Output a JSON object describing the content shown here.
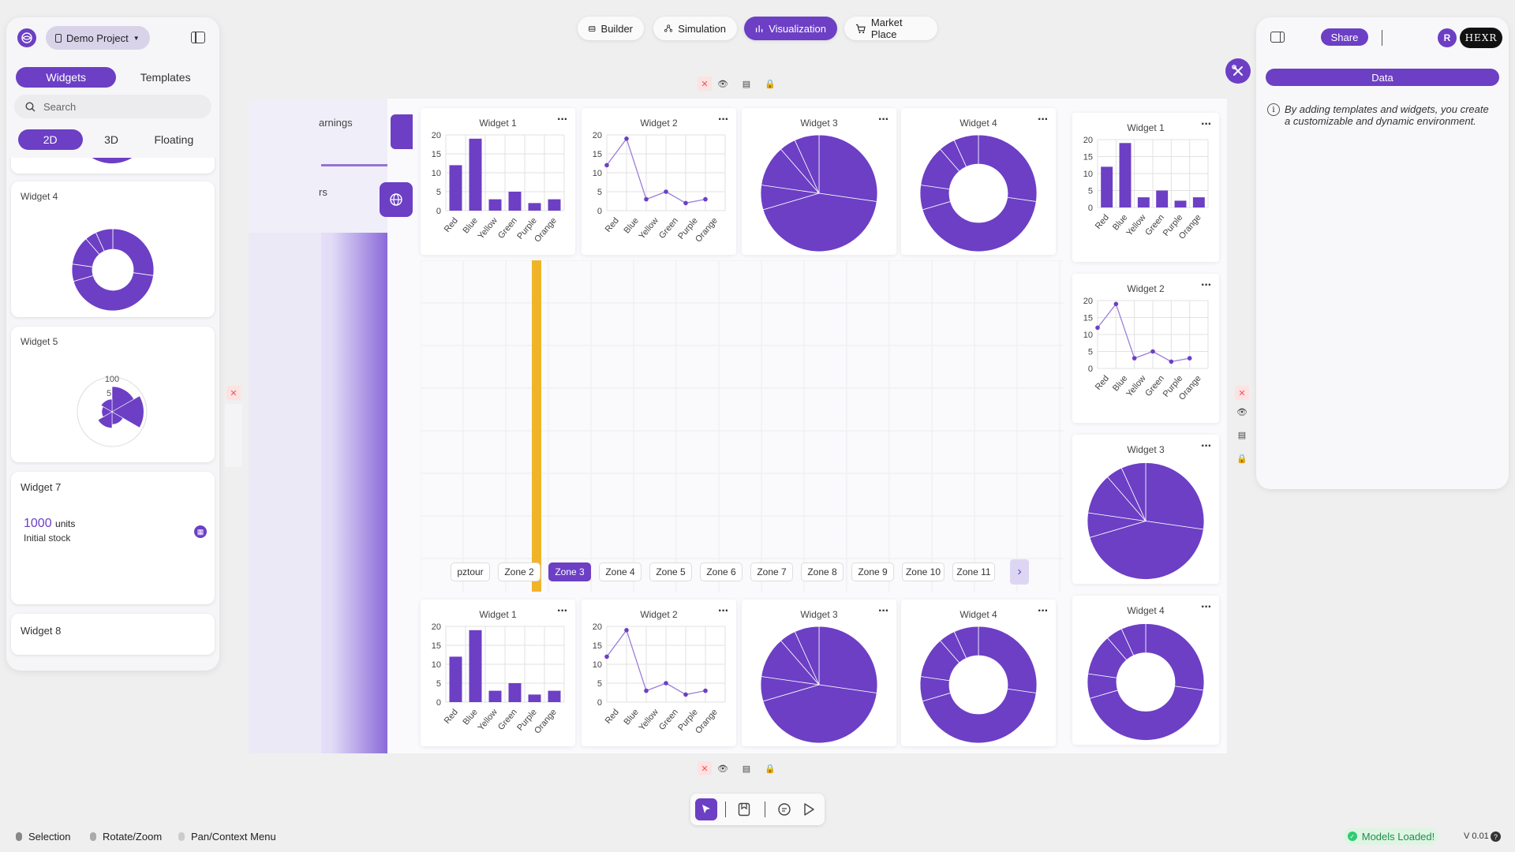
{
  "project": {
    "name": "Demo Project"
  },
  "left": {
    "tabs": [
      "Widgets",
      "Templates"
    ],
    "search_placeholder": "Search",
    "modes": [
      "2D",
      "3D",
      "Floating"
    ],
    "widget4": "Widget 4",
    "widget5": "Widget 5",
    "widget5_max": "100",
    "widget5_mid": "5",
    "widget7": {
      "title": "Widget 7",
      "value": "1000",
      "unit": "units",
      "caption": "Initial stock"
    },
    "widget8": "Widget 8"
  },
  "nav": {
    "builder": "Builder",
    "simulation": "Simulation",
    "visualization": "Visualization",
    "market": "Market Place"
  },
  "right": {
    "share": "Share",
    "avatar": "R",
    "logo": "HEXR",
    "data_tab": "Data",
    "info": "By adding templates and widgets, you create a customizable and dynamic environment."
  },
  "bg": {
    "earnings": "arnings",
    "rs": "rs"
  },
  "widgets": {
    "w1": "Widget 1",
    "w2": "Widget 2",
    "w3": "Widget 3",
    "w4": "Widget 4"
  },
  "zones": [
    "pztour",
    "Zone 2",
    "Zone 3",
    "Zone 4",
    "Zone 5",
    "Zone 6",
    "Zone 7",
    "Zone 8",
    "Zone 9",
    "Zone 10",
    "Zone 11"
  ],
  "status": {
    "selection": "Selection",
    "rotate": "Rotate/Zoom",
    "pan": "Pan/Context Menu",
    "models": "Models Loaded!",
    "version": "V 0.01"
  },
  "colors": {
    "accent": "#6c3fc5",
    "line": "#9b7fd9",
    "zone_line": "#f0b429",
    "success": "#2ecc71"
  },
  "icons": [
    "project-icon",
    "sidebar-toggle-icon",
    "search-icon",
    "grid-icon",
    "sitemap-icon",
    "bar-chart-icon",
    "cart-icon",
    "panel-icon",
    "tools-icon",
    "info-icon",
    "close-icon",
    "eye-icon",
    "film-icon",
    "lock-icon",
    "globe-icon",
    "pointer-icon",
    "bookmark-icon",
    "comment-icon",
    "play-icon",
    "chevron-right-icon",
    "help-icon"
  ],
  "chart_data": [
    {
      "type": "bar",
      "title": "Widget 1",
      "categories": [
        "Red",
        "Blue",
        "Yellow",
        "Green",
        "Purple",
        "Orange"
      ],
      "values": [
        12,
        19,
        3,
        5,
        2,
        3
      ],
      "ylim": [
        0,
        20
      ],
      "yticks": [
        0,
        5,
        10,
        15,
        20
      ]
    },
    {
      "type": "line",
      "title": "Widget 2",
      "categories": [
        "Red",
        "Blue",
        "Yellow",
        "Green",
        "Purple",
        "Orange"
      ],
      "values": [
        12,
        19,
        3,
        5,
        2,
        3
      ],
      "ylim": [
        0,
        20
      ],
      "yticks": [
        0,
        5,
        10,
        15,
        20
      ]
    },
    {
      "type": "pie",
      "title": "Widget 3",
      "values": [
        12,
        19,
        3,
        5,
        2,
        3
      ]
    },
    {
      "type": "doughnut",
      "title": "Widget 4",
      "values": [
        12,
        19,
        3,
        5,
        2,
        3
      ]
    },
    {
      "type": "polar",
      "title": "Widget 5",
      "values": [
        12,
        19,
        3,
        5,
        2,
        3
      ],
      "ylim": [
        0,
        100
      ]
    }
  ]
}
